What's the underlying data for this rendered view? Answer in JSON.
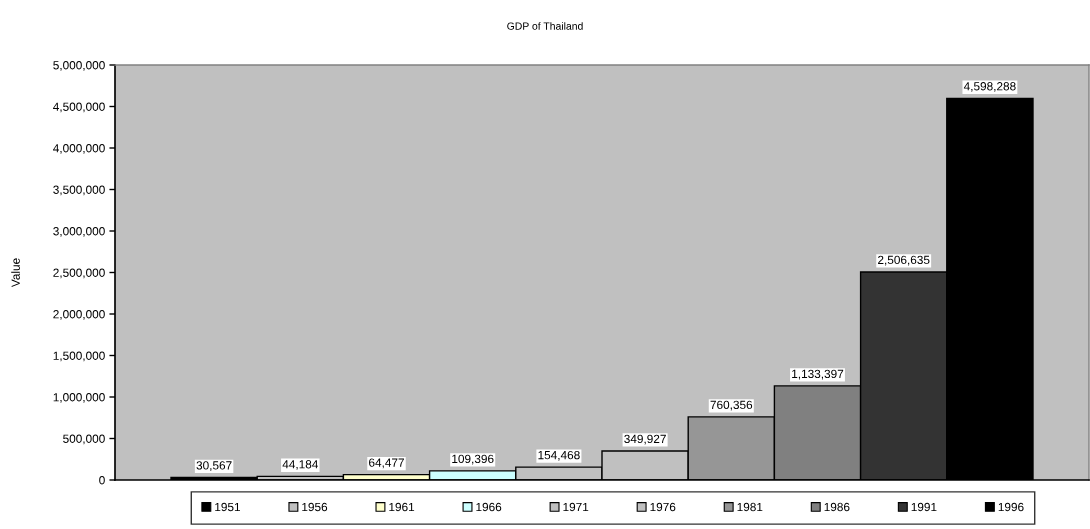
{
  "chart_data": {
    "type": "bar",
    "title": "GDP of Thailand",
    "ylabel": "Value",
    "categories": [
      null
    ],
    "series": [
      {
        "name": "1951",
        "color": "#000000",
        "values": [
          30567
        ],
        "value_labels": [
          "30,567"
        ]
      },
      {
        "name": "1956",
        "color": "#c0c0c0",
        "values": [
          44184
        ],
        "value_labels": [
          "44,184"
        ]
      },
      {
        "name": "1961",
        "color": "#ffffcc",
        "values": [
          64477
        ],
        "value_labels": [
          "64,477"
        ]
      },
      {
        "name": "1966",
        "color": "#ccffff",
        "values": [
          109396
        ],
        "value_labels": [
          "109,396"
        ]
      },
      {
        "name": "1971",
        "color": "#c0c0c0",
        "values": [
          154468
        ],
        "value_labels": [
          "154,468"
        ]
      },
      {
        "name": "1976",
        "color": "#c0c0c0",
        "values": [
          349927
        ],
        "value_labels": [
          "349,927"
        ]
      },
      {
        "name": "1981",
        "color": "#969696",
        "values": [
          760356
        ],
        "value_labels": [
          "760,356"
        ]
      },
      {
        "name": "1986",
        "color": "#808080",
        "values": [
          1133397
        ],
        "value_labels": [
          "1,133,397"
        ]
      },
      {
        "name": "1991",
        "color": "#333333",
        "values": [
          2506635
        ],
        "value_labels": [
          "2,506,635"
        ]
      },
      {
        "name": "1996",
        "color": "#000000",
        "values": [
          4598288
        ],
        "value_labels": [
          "4,598,288"
        ]
      }
    ],
    "ylim": [
      0,
      5000000
    ],
    "yticks": [
      0,
      {
        "value": 500000,
        "label": "500,000"
      },
      {
        "value": 1000000,
        "label": "1,000,000"
      },
      {
        "value": 1500000,
        "label": "1,500,000"
      },
      {
        "value": 2000000,
        "label": "2,000,000"
      },
      {
        "value": 2500000,
        "label": "2,500,000"
      },
      {
        "value": 3000000,
        "label": "3,000,000"
      },
      {
        "value": 3500000,
        "label": "3,500,000"
      },
      {
        "value": 4000000,
        "label": "4,000,000"
      },
      {
        "value": 4500000,
        "label": "4,500,000"
      },
      {
        "value": 5000000,
        "label": "5,000,000"
      }
    ],
    "grid": false,
    "legend": "bottom"
  }
}
